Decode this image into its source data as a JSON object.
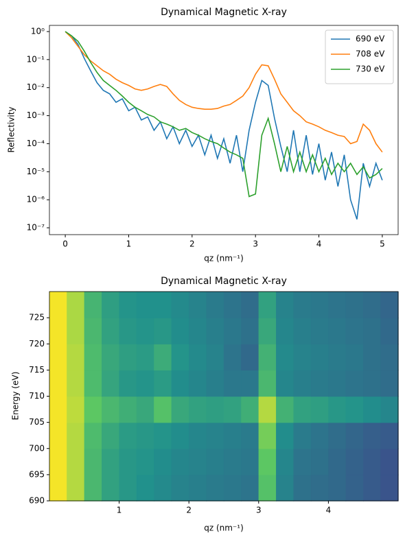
{
  "chart_data": [
    {
      "type": "line",
      "title": "Dynamical Magnetic X-ray",
      "xlabel": "qz (nm⁻¹)",
      "ylabel": "Reflectivity",
      "log_y": true,
      "legend": "upper right",
      "x": [
        0,
        0.1,
        0.2,
        0.3,
        0.4,
        0.5,
        0.6,
        0.7,
        0.8,
        0.9,
        1.0,
        1.1,
        1.2,
        1.3,
        1.4,
        1.5,
        1.6,
        1.7,
        1.8,
        1.9,
        2.0,
        2.1,
        2.2,
        2.3,
        2.4,
        2.5,
        2.6,
        2.7,
        2.8,
        2.9,
        3.0,
        3.1,
        3.2,
        3.3,
        3.4,
        3.5,
        3.6,
        3.7,
        3.8,
        3.9,
        4.0,
        4.1,
        4.2,
        4.3,
        4.4,
        4.5,
        4.6,
        4.7,
        4.8,
        4.9,
        5.0
      ],
      "series": [
        {
          "name": "690 eV",
          "color": "#1f77b4",
          "values": [
            1,
            0.7,
            0.35,
            0.11,
            0.04,
            0.015,
            0.008,
            0.006,
            0.003,
            0.004,
            0.0015,
            0.002,
            0.0007,
            0.0009,
            0.0003,
            0.0006,
            0.00015,
            0.0004,
            0.0001,
            0.0003,
            8e-05,
            0.0002,
            4e-05,
            0.0002,
            3e-05,
            0.00015,
            2e-05,
            0.0002,
            1e-05,
            0.0003,
            0.003,
            0.018,
            0.012,
            0.0008,
            8e-05,
            1e-05,
            0.0003,
            1e-05,
            0.0002,
            8e-06,
            0.0001,
            5e-06,
            5e-05,
            3e-06,
            4e-05,
            1e-06,
            2e-07,
            2e-05,
            3e-06,
            2e-05,
            5e-06
          ]
        },
        {
          "name": "708 eV",
          "color": "#ff7f0e",
          "values": [
            1,
            0.6,
            0.3,
            0.15,
            0.09,
            0.06,
            0.04,
            0.03,
            0.02,
            0.015,
            0.012,
            0.009,
            0.008,
            0.009,
            0.011,
            0.013,
            0.011,
            0.006,
            0.0035,
            0.0025,
            0.002,
            0.0018,
            0.0017,
            0.0017,
            0.0018,
            0.0022,
            0.0025,
            0.0035,
            0.005,
            0.01,
            0.03,
            0.065,
            0.06,
            0.02,
            0.006,
            0.003,
            0.0015,
            0.001,
            0.0006,
            0.0005,
            0.0004,
            0.0003,
            0.00025,
            0.0002,
            0.00018,
            0.0001,
            0.00012,
            0.0005,
            0.0003,
            0.0001,
            5e-05
          ]
        },
        {
          "name": "730 eV",
          "color": "#2ca02c",
          "values": [
            1,
            0.7,
            0.45,
            0.2,
            0.08,
            0.035,
            0.018,
            0.012,
            0.008,
            0.005,
            0.003,
            0.002,
            0.0015,
            0.0011,
            0.0009,
            0.0006,
            0.0005,
            0.0004,
            0.0003,
            0.00035,
            0.00025,
            0.0002,
            0.00015,
            0.00012,
            0.0001,
            7e-05,
            5e-05,
            4e-05,
            3e-05,
            1.3e-06,
            1.6e-06,
            0.0002,
            0.0008,
            0.0001,
            1e-05,
            8e-05,
            1e-05,
            5e-05,
            1e-05,
            4e-05,
            1e-05,
            3e-05,
            8e-06,
            2e-05,
            1e-05,
            2e-05,
            8e-06,
            1.5e-05,
            6e-06,
            8e-06,
            1.3e-05
          ]
        }
      ],
      "xlim": [
        -0.25,
        5.25
      ],
      "xticks": [
        0,
        1,
        2,
        3,
        4,
        5
      ],
      "ylim": [
        5.7e-08,
        1.66
      ],
      "yticks": [
        {
          "value": 1,
          "label": "10⁰"
        },
        {
          "value": 0.1,
          "label": "10⁻¹"
        },
        {
          "value": 0.01,
          "label": "10⁻²"
        },
        {
          "value": 0.001,
          "label": "10⁻³"
        },
        {
          "value": 0.0001,
          "label": "10⁻⁴"
        },
        {
          "value": 1e-05,
          "label": "10⁻⁵"
        },
        {
          "value": 1e-06,
          "label": "10⁻⁶"
        },
        {
          "value": 1e-07,
          "label": "10⁻⁷"
        }
      ]
    },
    {
      "type": "heatmap",
      "title": "Dynamical Magnetic X-ray",
      "xlabel": "qz (nm⁻¹)",
      "ylabel": "Energy (eV)",
      "colormap": "viridis",
      "zlim": [
        -7,
        0
      ],
      "x_edges": [
        0,
        0.25,
        0.5,
        0.75,
        1,
        1.25,
        1.5,
        1.75,
        2,
        2.25,
        2.5,
        2.75,
        3,
        3.25,
        3.5,
        3.75,
        4,
        4.25,
        4.5,
        4.75,
        5
      ],
      "y_edges": [
        690,
        695,
        700,
        705,
        710,
        715,
        720,
        725,
        730
      ],
      "values": [
        [
          -0.1,
          -0.8,
          -2.3,
          -3.0,
          -3.3,
          -3.5,
          -3.7,
          -3.9,
          -4.0,
          -4.1,
          -4.2,
          -4.3,
          -2.0,
          -3.9,
          -4.4,
          -4.5,
          -4.6,
          -4.8,
          -5.0,
          -5.2
        ],
        [
          -0.1,
          -0.8,
          -2.3,
          -3.0,
          -3.3,
          -3.4,
          -3.6,
          -3.8,
          -3.9,
          -4.0,
          -4.1,
          -4.2,
          -1.8,
          -3.8,
          -4.3,
          -4.4,
          -4.6,
          -4.8,
          -5.0,
          -5.2
        ],
        [
          -0.1,
          -0.8,
          -2.2,
          -2.8,
          -3.2,
          -3.3,
          -3.4,
          -3.6,
          -3.8,
          -3.9,
          -4.0,
          -4.1,
          -1.5,
          -3.6,
          -4.1,
          -4.3,
          -4.5,
          -4.7,
          -4.9,
          -5.0
        ],
        [
          -0.1,
          -0.7,
          -1.8,
          -2.3,
          -2.6,
          -2.8,
          -2.0,
          -2.8,
          -3.0,
          -3.1,
          -3.0,
          -2.6,
          -0.8,
          -2.5,
          -3.0,
          -3.1,
          -3.3,
          -3.4,
          -3.6,
          -3.8
        ],
        [
          -0.1,
          -0.8,
          -2.2,
          -2.9,
          -3.3,
          -3.4,
          -3.2,
          -3.6,
          -3.8,
          -4.0,
          -4.2,
          -4.2,
          -2.3,
          -3.8,
          -4.0,
          -4.1,
          -4.2,
          -4.3,
          -4.4,
          -4.5
        ],
        [
          -0.1,
          -0.8,
          -2.2,
          -2.8,
          -3.1,
          -3.2,
          -2.7,
          -3.4,
          -3.7,
          -3.9,
          -4.3,
          -4.6,
          -2.5,
          -3.7,
          -3.9,
          -4.0,
          -4.1,
          -4.2,
          -4.4,
          -4.5
        ],
        [
          -0.1,
          -0.9,
          -2.3,
          -3.0,
          -3.3,
          -3.4,
          -3.3,
          -3.6,
          -3.8,
          -4.0,
          -4.2,
          -4.4,
          -2.8,
          -3.8,
          -4.0,
          -4.1,
          -4.2,
          -4.3,
          -4.4,
          -4.6
        ],
        [
          -0.1,
          -0.9,
          -2.4,
          -3.1,
          -3.4,
          -3.5,
          -3.5,
          -3.7,
          -3.9,
          -4.1,
          -4.3,
          -4.5,
          -3.0,
          -3.9,
          -4.1,
          -4.2,
          -4.3,
          -4.4,
          -4.5,
          -4.7
        ]
      ],
      "xlim": [
        0,
        5
      ],
      "xticks": [
        1,
        2,
        3,
        4
      ],
      "ylim": [
        690,
        730
      ],
      "yticks": [
        690,
        695,
        700,
        705,
        710,
        715,
        720,
        725
      ]
    }
  ]
}
